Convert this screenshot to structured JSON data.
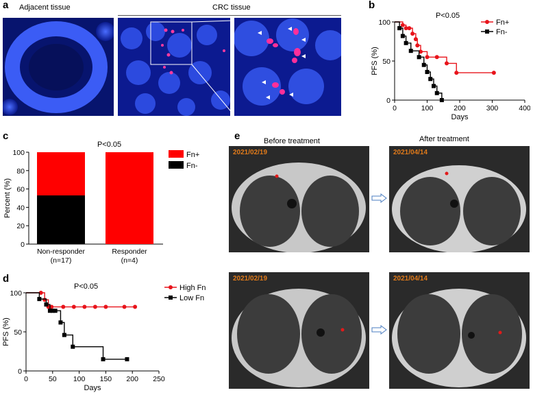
{
  "panels": {
    "a": {
      "letter": "a",
      "captions": [
        "Adjacent tissue",
        "CRC tissue"
      ]
    },
    "b": {
      "letter": "b",
      "pvalue": "P<0.05"
    },
    "c": {
      "letter": "c",
      "pvalue": "P<0.05"
    },
    "d": {
      "letter": "d",
      "pvalue": "P<0.05"
    },
    "e": {
      "letter": "e",
      "before_label": "Before treatment",
      "after_label": "After  treatment",
      "dates": [
        "2021/02/19",
        "2021/04/14",
        "2021/02/19",
        "2021/04/14"
      ]
    }
  },
  "chart_data": [
    {
      "id": "b",
      "type": "line",
      "xlabel": "Days",
      "ylabel": "PFS (%)",
      "xlim": [
        0,
        400
      ],
      "ylim": [
        0,
        100
      ],
      "xticks": [
        0,
        100,
        200,
        300,
        400
      ],
      "yticks": [
        0,
        50,
        100
      ],
      "legend_position": "top-right",
      "series": [
        {
          "name": "Fn+",
          "color": "#e8141b",
          "marker": "circle",
          "x": [
            0,
            25,
            35,
            45,
            55,
            65,
            70,
            80,
            100,
            130,
            160,
            190,
            305
          ],
          "y": [
            100,
            96,
            92,
            92,
            85,
            78,
            70,
            62,
            55,
            55,
            47,
            35,
            35
          ]
        },
        {
          "name": "Fn-",
          "color": "#000000",
          "marker": "square",
          "x": [
            0,
            15,
            25,
            35,
            50,
            75,
            90,
            100,
            110,
            120,
            130,
            145
          ],
          "y": [
            100,
            92,
            82,
            73,
            63,
            55,
            45,
            36,
            27,
            18,
            9,
            0
          ]
        }
      ]
    },
    {
      "id": "c",
      "type": "bar",
      "ylabel": "Percent (%)",
      "ylim": [
        0,
        100
      ],
      "yticks": [
        0,
        20,
        40,
        60,
        80,
        100
      ],
      "categories": [
        "Non-responder\n(n=17)",
        "Responder\n(n=4)"
      ],
      "category_lines": [
        [
          "Non-responder",
          "(n=17)"
        ],
        [
          "Responder",
          "(n=4)"
        ]
      ],
      "stacked": true,
      "legend_position": "top-right",
      "series": [
        {
          "name": "Fn-",
          "color": "#000000",
          "values": [
            53,
            0
          ]
        },
        {
          "name": "Fn+",
          "color": "#ff0000",
          "values": [
            47,
            100
          ]
        }
      ]
    },
    {
      "id": "d",
      "type": "line",
      "xlabel": "Days",
      "ylabel": "PFS (%)",
      "xlim": [
        0,
        250
      ],
      "ylim": [
        0,
        100
      ],
      "xticks": [
        0,
        50,
        100,
        150,
        200,
        250
      ],
      "yticks": [
        0,
        50,
        100
      ],
      "legend_position": "top-right",
      "series": [
        {
          "name": "High Fn",
          "color": "#e8141b",
          "marker": "circle",
          "x": [
            0,
            28,
            35,
            42,
            48,
            70,
            90,
            110,
            130,
            150,
            185,
            205
          ],
          "y": [
            100,
            100,
            91,
            82,
            82,
            82,
            82,
            82,
            82,
            82,
            82,
            82
          ]
        },
        {
          "name": "Low Fn",
          "color": "#000000",
          "marker": "square",
          "x": [
            0,
            25,
            38,
            45,
            50,
            55,
            65,
            72,
            88,
            145,
            190
          ],
          "y": [
            100,
            92,
            85,
            77,
            77,
            77,
            62,
            46,
            31,
            15,
            15
          ]
        }
      ]
    }
  ]
}
